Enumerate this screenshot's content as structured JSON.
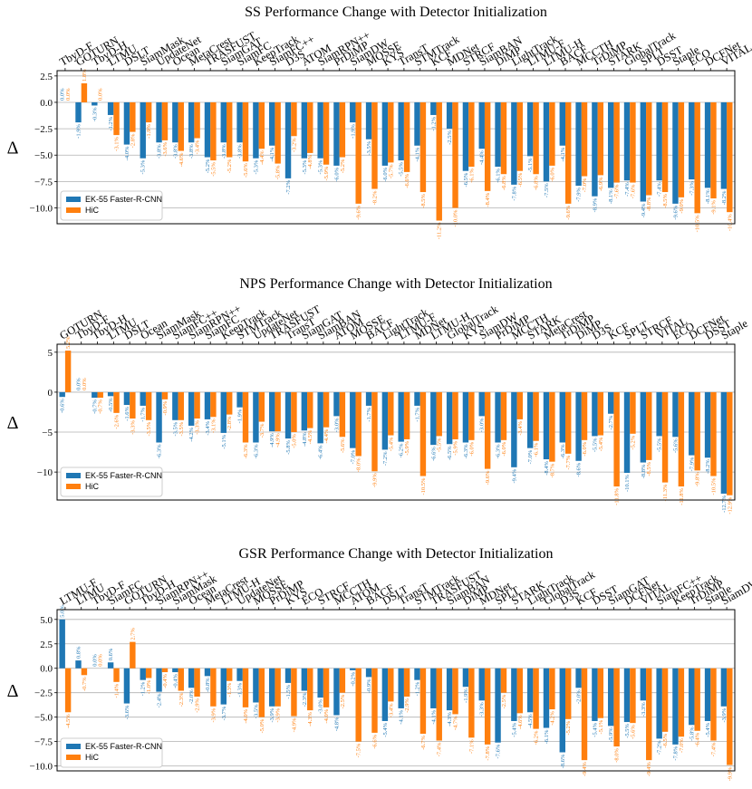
{
  "colors": {
    "ek55": "#1f77b4",
    "hic": "#ff7f0e"
  },
  "chart_data": [
    {
      "type": "bar",
      "title": "SS Performance Change with Detector Initialization",
      "ylabel": "Δ",
      "ylim": [
        -11.5,
        3
      ],
      "yticks": [
        2.5,
        0.0,
        -2.5,
        -5.0,
        -7.5,
        -10.0
      ],
      "ytick_labels": [
        "2.5",
        "0.0",
        "−2.5",
        "−5.0",
        "−7.5",
        "−10.0"
      ],
      "legend_position": "lower-left",
      "categories": [
        "TbyD-F",
        "GOTURN",
        "TbyD-H",
        "LTMU",
        "DSLT",
        "SiamMask",
        "UpdateNet",
        "Ocean",
        "MetaCrest",
        "TRASFUST",
        "SiamGAT",
        "SiamFC",
        "KeepTrack",
        "SiamFC++",
        "D3S",
        "ATOM",
        "SiamRPN++",
        "PrDiMP",
        "SiamDW",
        "MOSSE",
        "KYS",
        "TransT",
        "STMTrack",
        "KCF",
        "MDNet",
        "STRCF",
        "SiamBAN",
        "DiMP",
        "LightTrack",
        "LTMU-F",
        "LTMU-H",
        "BACF",
        "MCCTH",
        "TrDiMP",
        "STARK",
        "GlobalTrack",
        "SPLT",
        "DSST",
        "Staple",
        "ECO",
        "DCFNet",
        "VITAL"
      ],
      "series": [
        {
          "name": "EK-55 Faster-R-CNN",
          "values": [
            0.0,
            -1.9,
            -0.3,
            -1.2,
            -4.0,
            -5.3,
            -3.8,
            -3.8,
            -3.8,
            -5.2,
            -3.8,
            -3.8,
            -5.3,
            -4.1,
            -7.2,
            -5.3,
            -5.3,
            -6.0,
            -1.9,
            -3.5,
            -6.0,
            -5.5,
            -4.1,
            -1.2,
            -2.5,
            -6.5,
            -4.4,
            -6.1,
            -7.8,
            -5.1,
            -7.5,
            -4.1,
            -7.9,
            -8.9,
            -8.1,
            -7.4,
            -9.4,
            -7.4,
            -9.6,
            -7.3,
            -8.1,
            -8.2
          ],
          "labels": [
            "0.0%",
            "-1.9%",
            "-0.3%",
            "-1.2%",
            "-4.0%",
            "-5.3%",
            "-3.8%",
            "-3.8%",
            "-3.8%",
            "-5.2%",
            "-3.8%",
            "-3.8%",
            "-5.3%",
            "-4.1%",
            "-7.2%",
            "-5.3%",
            "-5.3%",
            "-6.0%",
            "-1.9%",
            "-3.5%",
            "-6.0%",
            "-5.5%",
            "-4.1%",
            "-1.2%",
            "-2.5%",
            "-6.5%",
            "-4.4%",
            "-6.1%",
            "-7.8%",
            "-5.1%",
            "-7.5%",
            "-4.1%",
            "-7.9%",
            "-8.9%",
            "-8.1%",
            "-7.4%",
            "-9.4%",
            "-7.4%",
            "-9.6%",
            "-7.3%",
            "-8.1%",
            "-8.2%"
          ]
        },
        {
          "name": "HiC",
          "values": [
            0.0,
            1.8,
            0.0,
            -3.1,
            -2.8,
            -1.9,
            -3.6,
            -4.6,
            -3.4,
            -5.5,
            -5.2,
            -5.6,
            -4.4,
            -5.8,
            -3.2,
            -4.8,
            -5.9,
            -5.2,
            -9.6,
            -8.2,
            -5.7,
            -6.6,
            -8.5,
            -11.2,
            -10.0,
            -6.1,
            -8.4,
            -6.8,
            -6.5,
            -6.8,
            -6.0,
            -9.6,
            -7.0,
            -6.9,
            -7.6,
            -7.6,
            -8.8,
            -8.5,
            -9.0,
            -10.5,
            -9.1,
            -10.4
          ],
          "labels": [
            "0.0%",
            "1.8%",
            "0.0%",
            "-3.1%",
            "-2.8%",
            "-1.9%",
            "-3.6%",
            "-4.6%",
            "-3.4%",
            "-5.5%",
            "-5.2%",
            "-5.6%",
            "-4.4%",
            "-5.8%",
            "-3.2%",
            "-4.8%",
            "-5.9%",
            "-5.2%",
            "-9.6%",
            "-8.2%",
            "-5.7%",
            "-6.6%",
            "-8.5%",
            "-11.2%",
            "-10.0%",
            "-6.1%",
            "-8.4%",
            "-6.8%",
            "-6.5%",
            "-6.8%",
            "-6.0%",
            "-9.6%",
            "-7.0%",
            "-6.9%",
            "-7.6%",
            "-7.6%",
            "-8.8%",
            "-8.5%",
            "-9.0%",
            "-10.5%",
            "-9.1%",
            "-10.4%"
          ]
        }
      ]
    },
    {
      "type": "bar",
      "title": "NPS Performance Change with Detector Initialization",
      "ylabel": "Δ",
      "ylim": [
        -13.5,
        6
      ],
      "yticks": [
        5,
        0,
        -5,
        -10
      ],
      "ytick_labels": [
        "5",
        "0",
        "−5",
        "−10"
      ],
      "legend_position": "lower-left",
      "categories": [
        "GOTURN",
        "TbyD-F",
        "TbyD-H",
        "LTMU",
        "DSLT",
        "Ocean",
        "SiamMask",
        "SiamFC++",
        "SiamRPN++",
        "SiamFC",
        "KeepTrack",
        "STMTrack",
        "UpdateNet",
        "TRASFUST",
        "TransT",
        "SiamGAT",
        "SiamBAN",
        "ATOM",
        "MOSSE",
        "BACF",
        "LightTrack",
        "LTMU-F",
        "MDNet",
        "LTMU-H",
        "GlobalTrack",
        "KYS",
        "SiamDW",
        "PrDiMP",
        "MCCTH",
        "STARK",
        "MetaCrest",
        "TrDiMP",
        "DiMP",
        "D3S",
        "KCF",
        "SPLT",
        "STRCF",
        "VITAL",
        "ECO",
        "DCFNet",
        "DSST",
        "Staple"
      ],
      "series": [
        {
          "name": "EK-55 Faster-R-CNN",
          "values": [
            -0.6,
            0.0,
            -0.7,
            -0.5,
            -1.6,
            -1.7,
            -6.3,
            -3.5,
            -4.2,
            -3.4,
            -5.1,
            -1.9,
            -6.3,
            -4.9,
            -5.8,
            -4.8,
            -6.4,
            -3.0,
            -7.0,
            -1.7,
            -7.2,
            -6.2,
            -1.7,
            -6.6,
            -6.5,
            -6.3,
            -3.0,
            -6.3,
            -9.4,
            -7.0,
            -8.4,
            -6.3,
            -8.6,
            -5.5,
            -2.7,
            -10.1,
            -8.8,
            -5.5,
            -5.6,
            -7.9,
            -8.2,
            -12.7
          ],
          "labels": [
            "-0.6%",
            "0.0%",
            "-0.7%",
            "-0.5%",
            "-1.6%",
            "-1.7%",
            "-6.3%",
            "-3.5%",
            "-4.2%",
            "-3.4%",
            "-5.1%",
            "-1.9%",
            "-6.3%",
            "-4.9%",
            "-5.8%",
            "-4.8%",
            "-6.4%",
            "-3.0%",
            "-7.0%",
            "-1.7%",
            "-7.2%",
            "-6.2%",
            "-1.7%",
            "-6.6%",
            "-6.5%",
            "-6.3%",
            "-3.0%",
            "-6.3%",
            "-9.4%",
            "-7.0%",
            "-8.4%",
            "-6.3%",
            "-8.6%",
            "-5.5%",
            "-2.7%",
            "-10.1%",
            "-8.8%",
            "-5.5%",
            "-5.6%",
            "-7.9%",
            "-8.2%",
            "-12.7%"
          ]
        },
        {
          "name": "HiC",
          "values": [
            5.2,
            0.0,
            -0.7,
            -2.6,
            -3.3,
            -3.5,
            -0.9,
            -3.5,
            -3.3,
            -3.1,
            -2.8,
            -6.3,
            -3.7,
            -4.9,
            -5.0,
            -4.5,
            -4.4,
            -5.6,
            -8.0,
            -9.9,
            -5.4,
            -5.9,
            -10.5,
            -5.5,
            -5.9,
            -6.0,
            -9.6,
            -6.0,
            -3.4,
            -6.1,
            -8.7,
            -7.7,
            -6.0,
            -5.4,
            -11.8,
            -5.2,
            -8.5,
            -11.3,
            -11.8,
            -9.8,
            -10.5,
            -12.9
          ],
          "labels": [
            "5.2%",
            "0.0%",
            "-0.7%",
            "-2.6%",
            "-3.3%",
            "-3.5%",
            "-0.9%",
            "-3.5%",
            "-3.3%",
            "-3.1%",
            "-2.8%",
            "-6.3%",
            "-3.7%",
            "-4.9%",
            "-5.0%",
            "-4.5%",
            "-4.4%",
            "-5.6%",
            "-8.0%",
            "-9.9%",
            "-5.4%",
            "-5.9%",
            "-10.5%",
            "-5.5%",
            "-5.9%",
            "-6.0%",
            "-9.6%",
            "-6.0%",
            "-3.4%",
            "-6.1%",
            "-8.7%",
            "-7.7%",
            "-6.0%",
            "-5.4%",
            "-11.8%",
            "-5.2%",
            "-8.5%",
            "-11.3%",
            "-11.8%",
            "-9.8%",
            "-10.5%",
            "-12.9%"
          ]
        }
      ]
    },
    {
      "type": "bar",
      "title": "GSR Performance Change with Detector Initialization",
      "ylabel": "Δ",
      "ylim": [
        -10.5,
        6
      ],
      "yticks": [
        5.0,
        2.5,
        0.0,
        -2.5,
        -5.0,
        -7.5,
        -10.0
      ],
      "ytick_labels": [
        "5.0",
        "2.5",
        "0.0",
        "−2.5",
        "−5.0",
        "−7.5",
        "−10.0"
      ],
      "legend_position": "lower-left",
      "categories": [
        "LTMU-F",
        "LTMU",
        "TbyD-F",
        "SiamFC",
        "GOTURN",
        "TbyD-H",
        "SiamRPN++",
        "SiamMask",
        "Ocean",
        "MetaCrest",
        "LTMU-H",
        "UpdateNet",
        "MOSSE",
        "PrDiMP",
        "KYS",
        "ECO",
        "STRCF",
        "MCCTH",
        "ATOM",
        "BACF",
        "DSLT",
        "TransT",
        "STMTrack",
        "TRASFUST",
        "SiamBAN",
        "DiMP",
        "MDNet",
        "SPLT",
        "STARK",
        "LightTrack",
        "GlobalTrack",
        "D3S",
        "KCF",
        "DSST",
        "SiamGAT",
        "DCFNet",
        "VITAL",
        "SiamFC++",
        "KeepTrack",
        "TrDiMP",
        "Staple",
        "SiamDW"
      ],
      "series": [
        {
          "name": "EK-55 Faster-R-CNN",
          "values": [
            5.0,
            0.8,
            0.0,
            0.6,
            -3.6,
            -1.2,
            -2.4,
            -0.4,
            -2.0,
            -0.8,
            -3.7,
            -1.3,
            -3.5,
            -3.9,
            -1.5,
            -2.3,
            -3.0,
            -4.8,
            -0.2,
            -0.9,
            -5.4,
            -4.1,
            -1.2,
            -4.1,
            -4.3,
            -1.9,
            -3.3,
            -7.6,
            -5.4,
            -4.5,
            -6.1,
            -8.6,
            -2.0,
            -5.4,
            -5.9,
            -5.5,
            -3.3,
            -7.2,
            -7.8,
            -5.8,
            -5.4,
            -3.9
          ],
          "labels": [
            "5.0%",
            "0.8%",
            "0.0%",
            "0.6%",
            "-3.6%",
            "-1.2%",
            "-2.4%",
            "-0.4%",
            "-2.0%",
            "-0.8%",
            "-3.7%",
            "-1.3%",
            "-3.5%",
            "-3.9%",
            "-1.5%",
            "-2.3%",
            "-3.0%",
            "-4.8%",
            "-0.2%",
            "-0.9%",
            "-5.4%",
            "-4.1%",
            "-1.2%",
            "-4.1%",
            "-4.3%",
            "-1.9%",
            "-3.3%",
            "-7.6%",
            "-5.4%",
            "-4.5%",
            "-6.1%",
            "-8.6%",
            "-2.0%",
            "-5.4%",
            "-5.9%",
            "-5.5%",
            "-3.3%",
            "-7.2%",
            "-7.8%",
            "-5.8%",
            "-5.4%",
            "-3.9%"
          ]
        },
        {
          "name": "HiC",
          "values": [
            -4.5,
            -0.7,
            0.0,
            -1.4,
            2.7,
            -1.0,
            -0.4,
            -2.3,
            -2.9,
            -3.9,
            -1.3,
            -4.0,
            -5.0,
            -3.9,
            -4.9,
            -4.3,
            -4.0,
            -2.5,
            -7.5,
            -6.6,
            -3.4,
            -2.9,
            -6.7,
            -7.4,
            -4.7,
            -7.1,
            -7.8,
            -2.5,
            -4.6,
            -6.2,
            -4.2,
            -5.2,
            -9.4,
            -5.1,
            -8.0,
            -5.6,
            -9.4,
            -6.5,
            -7.0,
            -6.4,
            -7.4,
            -9.9
          ],
          "labels": [
            "-4.5%",
            "-0.7%",
            "0.0%",
            "-1.4%",
            "2.7%",
            "-1.0%",
            "-0.4%",
            "-2.3%",
            "-2.9%",
            "-3.9%",
            "-1.3%",
            "-4.0%",
            "-5.0%",
            "-3.9%",
            "-4.9%",
            "-4.3%",
            "-4.0%",
            "-2.5%",
            "-7.5%",
            "-6.6%",
            "-3.4%",
            "-2.9%",
            "-6.7%",
            "-7.4%",
            "-4.7%",
            "-7.1%",
            "-7.8%",
            "-2.5%",
            "-4.6%",
            "-6.2%",
            "-4.2%",
            "-5.2%",
            "-9.4%",
            "-5.1%",
            "-8.0%",
            "-5.6%",
            "-9.4%",
            "-6.5%",
            "-7.0%",
            "-6.4%",
            "-7.4%",
            "-9.9%"
          ]
        }
      ]
    }
  ]
}
